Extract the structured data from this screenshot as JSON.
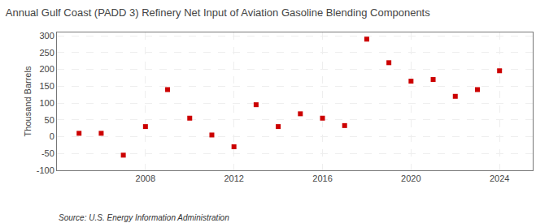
{
  "chart_data": {
    "type": "scatter",
    "title": "Annual Gulf Coast (PADD 3) Refinery Net Input of Aviation Gasoline Blending Components",
    "y_label": "Thousand Barrels",
    "annotations": [
      "Source: U.S. Energy Information Administration"
    ],
    "x": [
      2005,
      2006,
      2007,
      2008,
      2009,
      2010,
      2011,
      2012,
      2013,
      2014,
      2015,
      2016,
      2017,
      2018,
      2019,
      2020,
      2021,
      2022,
      2023,
      2024
    ],
    "values": [
      10,
      10,
      -55,
      30,
      140,
      55,
      5,
      -30,
      95,
      30,
      68,
      55,
      33,
      290,
      220,
      165,
      170,
      120,
      140,
      196
    ],
    "color": "#cc0000",
    "marker": "square",
    "xlim": [
      2004.0,
      2025.5
    ],
    "ylim": [
      -100,
      310
    ],
    "xticks": [
      2008,
      2012,
      2016,
      2020,
      2024
    ],
    "yticks": [
      -100,
      -50,
      0,
      50,
      100,
      150,
      200,
      250,
      300
    ],
    "grid": true
  }
}
